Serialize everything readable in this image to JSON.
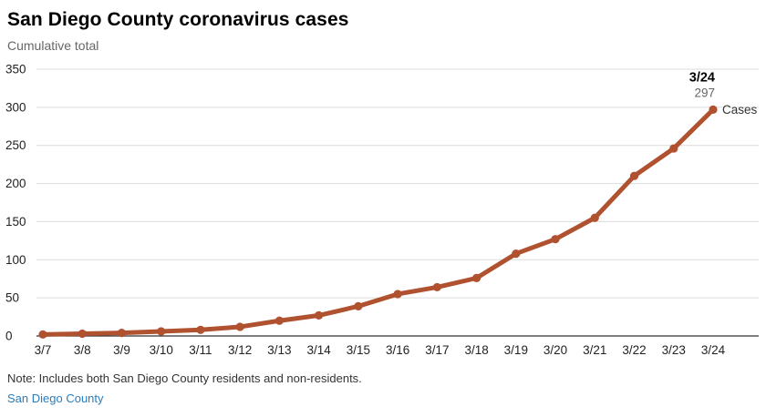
{
  "chart_data": {
    "type": "line",
    "title": "San Diego County coronavirus cases",
    "subtitle": "Cumulative total",
    "categories": [
      "3/7",
      "3/8",
      "3/9",
      "3/10",
      "3/11",
      "3/12",
      "3/13",
      "3/14",
      "3/15",
      "3/16",
      "3/17",
      "3/18",
      "3/19",
      "3/20",
      "3/21",
      "3/22",
      "3/23",
      "3/24"
    ],
    "series": [
      {
        "name": "Cases",
        "values": [
          2,
          3,
          4,
          6,
          8,
          12,
          20,
          27,
          39,
          55,
          64,
          76,
          108,
          127,
          155,
          210,
          246,
          297
        ]
      }
    ],
    "xlabel": "",
    "ylabel": "",
    "ylim": [
      0,
      350
    ],
    "yticks": [
      0,
      50,
      100,
      150,
      200,
      250,
      300,
      350
    ],
    "grid": "horizontal",
    "legend_position": "end-of-line",
    "annotation": {
      "date_label": "3/24",
      "value_label": "297",
      "series_label": "Cases"
    }
  },
  "colors": {
    "line": "#b0512f",
    "point": "#b0512f",
    "grid": "#dcdcdc",
    "baseline": "#333333",
    "tick_text": "#222222",
    "annotation_date": "#000000",
    "annotation_value": "#666666",
    "series_label": "#333333",
    "link": "#2a7dbd"
  },
  "footer": {
    "note": "Note: Includes both San Diego County residents and non-residents.",
    "source": "San Diego County"
  }
}
